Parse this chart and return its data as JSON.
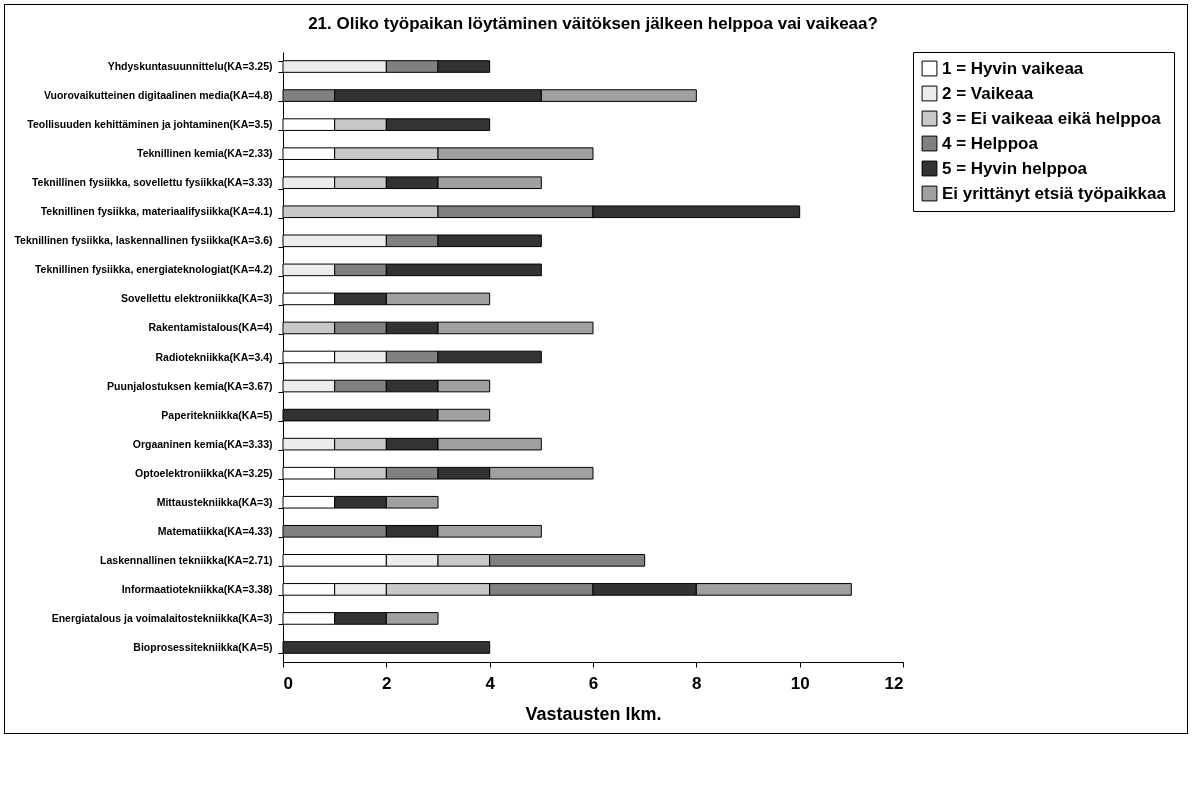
{
  "chart_data": {
    "type": "bar",
    "orientation": "horizontal",
    "stacked": true,
    "title": "21. Oliko työpaikan löytäminen väitöksen jälkeen helppoa vai vaikeaa?",
    "xlabel": "Vastausten lkm.",
    "categories": [
      "Yhdyskuntasuunnittelu(KA=3.25)",
      "Vuorovaikutteinen digitaalinen media(KA=4.8)",
      "Teollisuuden kehittäminen ja johtaminen(KA=3.5)",
      "Teknillinen kemia(KA=2.33)",
      "Teknillinen fysiikka, sovellettu fysiikka(KA=3.33)",
      "Teknillinen fysiikka, materiaalifysiikka(KA=4.1)",
      "Teknillinen fysiikka, laskennallinen fysiikka(KA=3.6)",
      "Teknillinen fysiikka, energiateknologiat(KA=4.2)",
      "Sovellettu elektroniikka(KA=3)",
      "Rakentamistalous(KA=4)",
      "Radiotekniikka(KA=3.4)",
      "Puunjalostuksen kemia(KA=3.67)",
      "Paperitekniikka(KA=5)",
      "Orgaaninen kemia(KA=3.33)",
      "Optoelektroniikka(KA=3.25)",
      "Mittaustekniikka(KA=3)",
      "Matematiikka(KA=4.33)",
      "Laskennallinen tekniikka(KA=2.71)",
      "Informaatiotekniikka(KA=3.38)",
      "Energiatalous ja voimalaitostekniikka(KA=3)",
      "Bioprosessitekniikka(KA=5)"
    ],
    "series": [
      {
        "name": "1 = Hyvin vaikeaa",
        "color": "#ffffff",
        "values": [
          null,
          null,
          1,
          1,
          null,
          null,
          null,
          null,
          1,
          null,
          1,
          null,
          null,
          null,
          1,
          1,
          null,
          2,
          1,
          1,
          null
        ]
      },
      {
        "name": "2 = Vaikeaa",
        "color": "#ececec",
        "values": [
          2,
          null,
          null,
          null,
          1,
          null,
          2,
          1,
          null,
          null,
          1,
          1,
          null,
          1,
          null,
          null,
          null,
          1,
          1,
          null,
          null
        ]
      },
      {
        "name": "3 = Ei vaikeaa eikä helppoa",
        "color": "#c8c8c8",
        "values": [
          null,
          null,
          1,
          2,
          1,
          3,
          null,
          null,
          null,
          1,
          null,
          null,
          null,
          1,
          1,
          null,
          null,
          1,
          2,
          null,
          null
        ]
      },
      {
        "name": "4 = Helppoa",
        "color": "#808080",
        "values": [
          1,
          1,
          null,
          null,
          null,
          3,
          1,
          1,
          null,
          1,
          1,
          1,
          null,
          null,
          1,
          null,
          2,
          3,
          2,
          null,
          null
        ]
      },
      {
        "name": "5 = Hyvin helppoa",
        "color": "#333333",
        "values": [
          1,
          4,
          2,
          null,
          1,
          4,
          2,
          3,
          1,
          1,
          2,
          1,
          3,
          1,
          1,
          1,
          1,
          null,
          2,
          1,
          4
        ]
      },
      {
        "name": "Ei yrittänyt etsiä työpaikkaa",
        "color": "#a0a0a0",
        "values": [
          null,
          3,
          null,
          3,
          2,
          null,
          null,
          null,
          2,
          3,
          null,
          1,
          1,
          2,
          2,
          1,
          2,
          null,
          3,
          1,
          null
        ]
      }
    ],
    "xlim": [
      0,
      12
    ],
    "xticks": [
      0,
      2,
      4,
      6,
      8,
      10,
      12
    ],
    "grid": false,
    "legend": "right"
  }
}
